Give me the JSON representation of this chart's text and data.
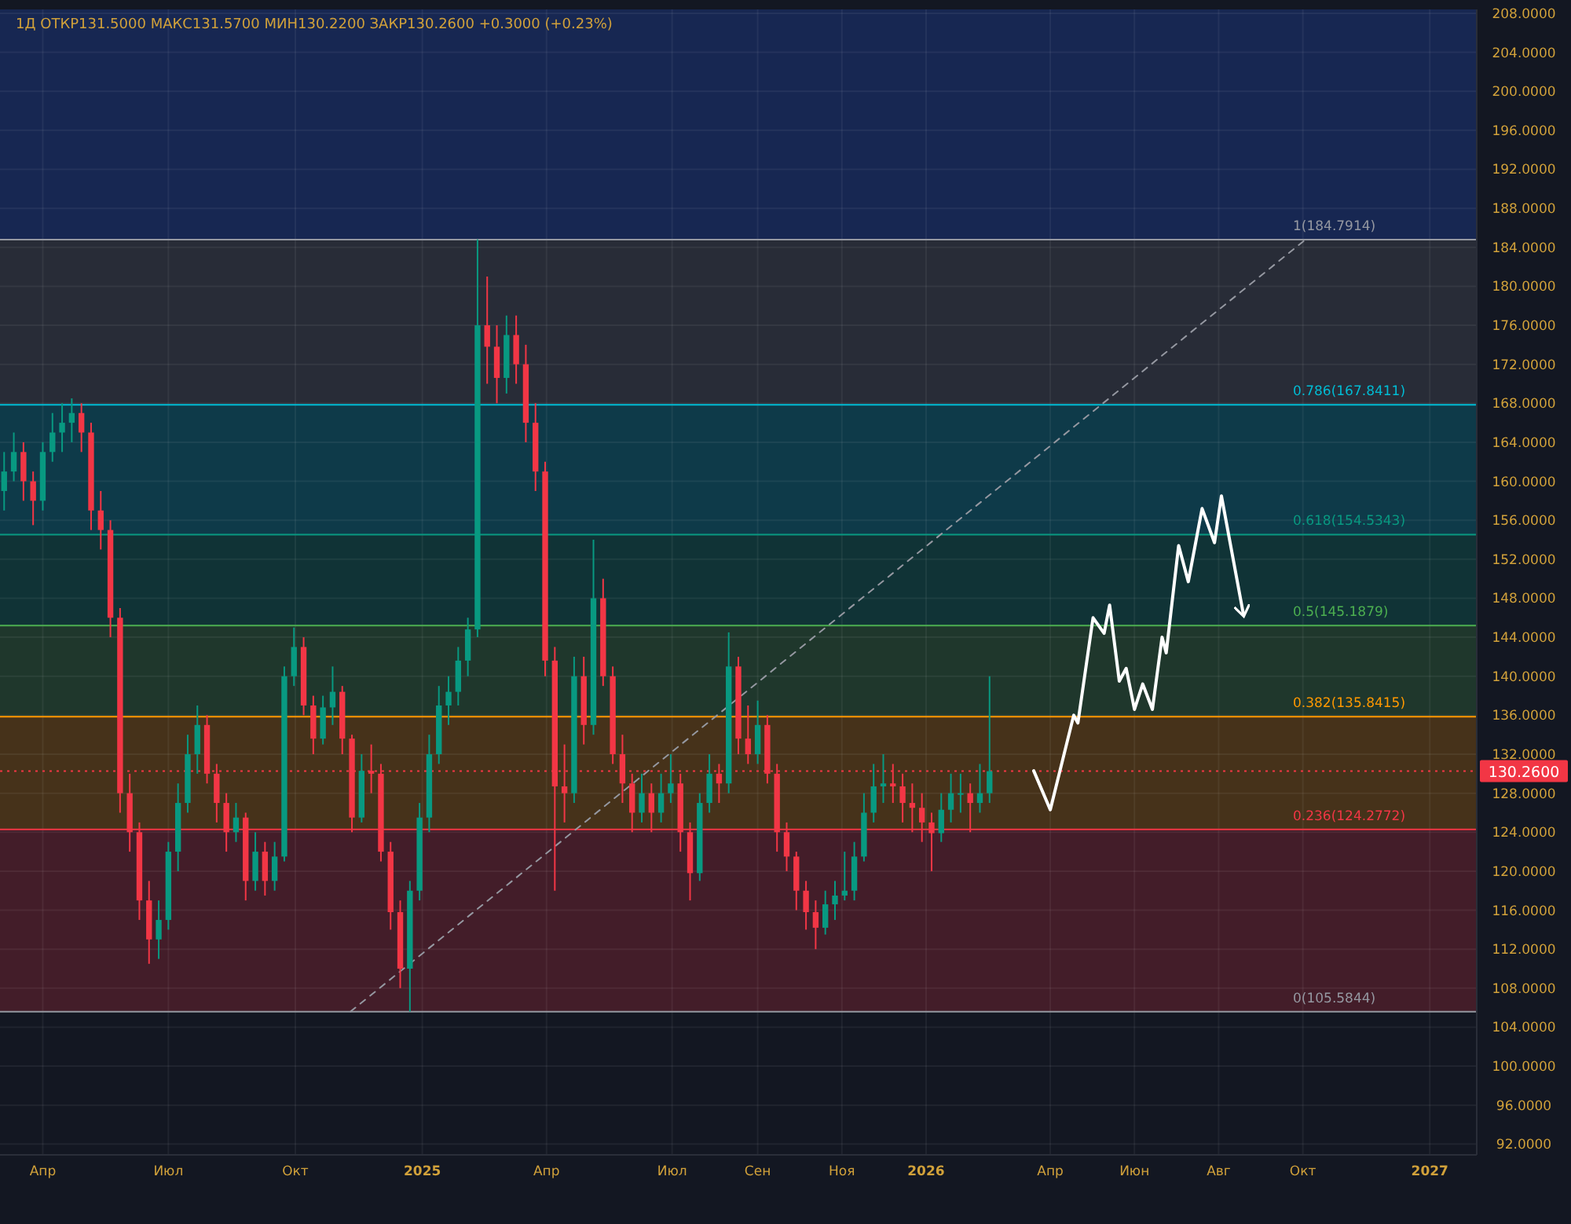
{
  "chart_data": {
    "type": "candlestick",
    "title": "1Д ОТКР131.5000 МАКС131.5700 МИН130.2200 ЗАКР130.2600 +0.3000 (+0.23%)",
    "x": [
      "2024-03-04",
      "2024-03-11",
      "2024-03-18",
      "2024-03-25",
      "2024-04-01",
      "2024-04-08",
      "2024-04-15",
      "2024-04-22",
      "2024-04-29",
      "2024-05-06",
      "2024-05-13",
      "2024-05-20",
      "2024-05-27",
      "2024-06-03",
      "2024-06-10",
      "2024-06-17",
      "2024-06-24",
      "2024-07-01",
      "2024-07-08",
      "2024-07-15",
      "2024-07-22",
      "2024-07-29",
      "2024-08-05",
      "2024-08-12",
      "2024-08-19",
      "2024-08-26",
      "2024-09-02",
      "2024-09-09",
      "2024-09-16",
      "2024-09-23",
      "2024-09-30",
      "2024-10-07",
      "2024-10-14",
      "2024-10-21",
      "2024-10-28",
      "2024-11-04",
      "2024-11-11",
      "2024-11-18",
      "2024-11-25",
      "2024-12-02",
      "2024-12-09",
      "2024-12-16",
      "2024-12-23",
      "2024-12-30",
      "2025-01-06",
      "2025-01-13",
      "2025-01-20",
      "2025-01-27",
      "2025-02-03",
      "2025-02-10",
      "2025-02-17",
      "2025-02-24",
      "2025-03-03",
      "2025-03-10",
      "2025-03-17",
      "2025-03-24",
      "2025-03-31",
      "2025-04-07",
      "2025-04-14",
      "2025-04-21",
      "2025-04-28",
      "2025-05-05",
      "2025-05-12",
      "2025-05-19",
      "2025-05-26",
      "2025-06-02",
      "2025-06-09",
      "2025-06-16",
      "2025-06-23",
      "2025-06-30",
      "2025-07-07",
      "2025-07-14",
      "2025-07-21",
      "2025-07-28",
      "2025-08-04",
      "2025-08-11",
      "2025-08-18",
      "2025-08-25",
      "2025-09-01",
      "2025-09-08",
      "2025-09-15",
      "2025-09-22",
      "2025-09-29",
      "2025-10-06",
      "2025-10-13",
      "2025-10-20",
      "2025-10-27",
      "2025-11-03",
      "2025-11-10",
      "2025-11-17",
      "2025-11-24",
      "2025-12-01",
      "2025-12-08",
      "2025-12-15",
      "2025-12-22",
      "2025-12-29",
      "2026-01-05",
      "2026-01-12",
      "2026-01-19",
      "2026-01-26",
      "2026-02-02",
      "2026-02-09",
      "2026-02-16"
    ],
    "ohlc": [
      [
        159,
        163,
        157,
        161
      ],
      [
        161,
        165,
        160,
        163
      ],
      [
        163,
        164,
        158,
        160
      ],
      [
        160,
        161,
        155.5,
        158
      ],
      [
        158,
        164,
        157,
        163
      ],
      [
        163,
        167,
        162,
        165
      ],
      [
        165,
        168,
        163,
        166
      ],
      [
        166,
        168.5,
        164,
        167
      ],
      [
        167,
        168,
        163,
        165
      ],
      [
        165,
        166,
        155,
        157
      ],
      [
        157,
        159,
        153,
        155
      ],
      [
        155,
        156,
        144,
        146
      ],
      [
        146,
        147,
        126,
        128
      ],
      [
        128,
        130,
        122,
        124
      ],
      [
        124,
        125,
        115,
        117
      ],
      [
        117,
        119,
        110.5,
        113
      ],
      [
        113,
        117,
        111,
        115
      ],
      [
        115,
        123,
        114,
        122
      ],
      [
        122,
        129,
        120,
        127
      ],
      [
        127,
        134,
        126,
        132
      ],
      [
        132,
        137,
        130,
        135
      ],
      [
        135,
        136,
        129,
        130
      ],
      [
        130,
        131,
        125,
        127
      ],
      [
        127,
        128,
        122,
        124
      ],
      [
        124,
        127,
        123,
        125.5
      ],
      [
        125.5,
        126,
        117,
        119
      ],
      [
        119,
        124,
        118,
        122
      ],
      [
        122,
        123,
        117.5,
        119
      ],
      [
        119,
        123,
        118,
        121.5
      ],
      [
        121.5,
        141,
        121,
        140
      ],
      [
        140,
        145,
        139,
        143
      ],
      [
        143,
        144,
        136,
        137
      ],
      [
        137,
        138,
        132,
        133.6
      ],
      [
        133.6,
        138,
        133,
        136.8
      ],
      [
        136.8,
        141,
        135,
        138.4
      ],
      [
        138.4,
        139,
        132,
        133.6
      ],
      [
        133.6,
        134,
        124,
        125.5
      ],
      [
        125.5,
        132,
        125,
        130.3
      ],
      [
        130.3,
        133,
        128,
        130
      ],
      [
        130,
        131,
        121,
        122
      ],
      [
        122,
        123,
        114,
        115.8
      ],
      [
        115.8,
        117,
        108,
        110
      ],
      [
        110,
        119,
        105.6,
        118
      ],
      [
        118,
        127,
        117,
        125.5
      ],
      [
        125.5,
        134,
        124,
        132
      ],
      [
        132,
        139,
        131,
        137
      ],
      [
        137,
        140,
        135,
        138.4
      ],
      [
        138.4,
        143,
        137,
        141.6
      ],
      [
        141.6,
        146,
        140,
        144.8
      ],
      [
        144.8,
        184.8,
        144,
        176
      ],
      [
        176,
        181,
        170,
        173.8
      ],
      [
        173.8,
        176,
        168,
        170.6
      ],
      [
        170.6,
        177,
        169,
        175
      ],
      [
        175,
        177,
        170,
        172
      ],
      [
        172,
        174,
        164,
        166
      ],
      [
        166,
        168,
        159,
        161
      ],
      [
        161,
        162,
        140,
        141.6
      ],
      [
        141.6,
        143,
        118,
        128.7
      ],
      [
        128.7,
        133,
        125,
        128
      ],
      [
        128,
        142,
        127,
        140
      ],
      [
        140,
        142,
        133,
        135
      ],
      [
        135,
        154,
        134,
        148
      ],
      [
        148,
        150,
        139,
        140
      ],
      [
        140,
        141,
        131,
        132
      ],
      [
        132,
        134,
        127,
        129
      ],
      [
        129,
        130,
        124,
        126
      ],
      [
        126,
        130,
        125,
        128
      ],
      [
        128,
        129,
        124,
        126
      ],
      [
        126,
        130,
        125,
        128
      ],
      [
        128,
        132,
        127,
        129
      ],
      [
        129,
        130,
        122,
        124
      ],
      [
        124,
        125,
        117,
        119.8
      ],
      [
        119.8,
        128,
        119,
        127
      ],
      [
        127,
        132,
        126,
        130
      ],
      [
        130,
        131,
        127,
        129
      ],
      [
        129,
        144.5,
        128,
        141
      ],
      [
        141,
        142,
        132,
        133.6
      ],
      [
        133.6,
        137,
        131,
        132
      ],
      [
        132,
        137.5,
        131,
        135
      ],
      [
        135,
        136,
        129,
        130
      ],
      [
        130,
        131,
        122,
        124
      ],
      [
        124,
        125,
        120,
        121.5
      ],
      [
        121.5,
        122,
        116,
        118
      ],
      [
        118,
        119,
        114,
        115.8
      ],
      [
        115.8,
        117,
        112,
        114.2
      ],
      [
        114.2,
        118,
        113.5,
        116.6
      ],
      [
        116.6,
        119,
        115,
        117.5
      ],
      [
        117.5,
        122,
        117,
        118
      ],
      [
        118,
        123,
        117,
        121.5
      ],
      [
        121.5,
        128,
        121,
        126
      ],
      [
        126,
        131,
        125,
        128.7
      ],
      [
        128.7,
        132,
        127,
        129
      ],
      [
        129,
        131,
        127,
        128.7
      ],
      [
        128.7,
        130,
        125,
        127
      ],
      [
        127,
        129,
        124,
        126.5
      ],
      [
        126.5,
        128,
        123,
        125
      ],
      [
        125,
        126,
        120,
        123.9
      ],
      [
        123.9,
        128,
        123,
        126.3
      ],
      [
        126.3,
        130,
        125,
        128
      ],
      [
        128,
        130,
        126,
        128
      ],
      [
        128,
        129,
        124,
        127
      ],
      [
        127,
        131,
        126,
        128
      ],
      [
        128,
        140,
        127,
        130.26
      ]
    ],
    "series": [
      {
        "type": "line",
        "color": "#ffffff",
        "line_style": "solid",
        "x": [
          "2026-03-20",
          "2026-04-01",
          "2026-04-18",
          "2026-04-21",
          "2026-05-02",
          "2026-05-10",
          "2026-05-14",
          "2026-05-21",
          "2026-05-26",
          "2026-06-01",
          "2026-06-07",
          "2026-06-14",
          "2026-06-21",
          "2026-06-24",
          "2026-07-03",
          "2026-07-10",
          "2026-07-20",
          "2026-07-29",
          "2026-08-03",
          "2026-08-19"
        ],
        "values": [
          130.3,
          126.3,
          136.0,
          135.2,
          146.0,
          144.4,
          147.3,
          139.5,
          140.8,
          136.6,
          139.2,
          136.6,
          144.0,
          142.4,
          153.4,
          149.7,
          157.2,
          153.7,
          158.5,
          146.3
        ]
      },
      {
        "type": "line",
        "color": "#9598a1",
        "line_style": "dashed",
        "x": [
          "2024-11-10",
          "2026-10-03"
        ],
        "values": [
          105.6,
          184.8
        ]
      }
    ],
    "bands": [
      {
        "axis": "y",
        "from": 184.7914,
        "to": 208.4,
        "color": "#2962ff"
      },
      {
        "axis": "y",
        "from": 167.8411,
        "to": 184.7914,
        "color": "#787b86"
      },
      {
        "axis": "y",
        "from": 154.5343,
        "to": 167.8411,
        "color": "#00bcd4"
      },
      {
        "axis": "y",
        "from": 145.1879,
        "to": 154.5343,
        "color": "#089981"
      },
      {
        "axis": "y",
        "from": 135.8415,
        "to": 145.1879,
        "color": "#4caf50"
      },
      {
        "axis": "y",
        "from": 124.2772,
        "to": 135.8415,
        "color": "#ff9800"
      },
      {
        "axis": "y",
        "from": 105.5844,
        "to": 124.2772,
        "color": "#f23645"
      }
    ],
    "ref_lines": [
      {
        "axis": "y",
        "value": 184.7914,
        "label": "1(184.7914)",
        "color": "#9598a1",
        "line_style": "solid"
      },
      {
        "axis": "y",
        "value": 167.8411,
        "label": "0.786(167.8411)",
        "color": "#00bcd4",
        "line_style": "solid"
      },
      {
        "axis": "y",
        "value": 154.5343,
        "label": "0.618(154.5343)",
        "color": "#089981",
        "line_style": "solid"
      },
      {
        "axis": "y",
        "value": 145.1879,
        "label": "0.5(145.1879)",
        "color": "#4caf50",
        "line_style": "solid"
      },
      {
        "axis": "y",
        "value": 135.8415,
        "label": "0.382(135.8415)",
        "color": "#ff9800",
        "line_style": "solid"
      },
      {
        "axis": "y",
        "value": 124.2772,
        "label": "0.236(124.2772)",
        "color": "#f23645",
        "line_style": "solid"
      },
      {
        "axis": "y",
        "value": 105.5844,
        "label": "0(105.5844)",
        "color": "#9598a1",
        "line_style": "solid"
      },
      {
        "axis": "y",
        "value": 130.26,
        "label": "130.2600",
        "color": "#f23645",
        "line_style": "dotted"
      }
    ],
    "xlim": [
      "2024-03-01",
      "2027-02-04"
    ],
    "xticks": [
      {
        "value": "2024-04-01",
        "label": "Апр"
      },
      {
        "value": "2024-07-01",
        "label": "Июл"
      },
      {
        "value": "2024-10-01",
        "label": "Окт"
      },
      {
        "value": "2025-01-01",
        "label": "2025"
      },
      {
        "value": "2025-04-01",
        "label": "Апр"
      },
      {
        "value": "2025-07-01",
        "label": "Июл"
      },
      {
        "value": "2025-09-01",
        "label": "Сен"
      },
      {
        "value": "2025-11-01",
        "label": "Ноя"
      },
      {
        "value": "2026-01-01",
        "label": "2026"
      },
      {
        "value": "2026-04-01",
        "label": "Апр"
      },
      {
        "value": "2026-06-01",
        "label": "Июн"
      },
      {
        "value": "2026-08-01",
        "label": "Авг"
      },
      {
        "value": "2026-10-01",
        "label": "Окт"
      },
      {
        "value": "2027-01-01",
        "label": "2027"
      }
    ],
    "ylim": [
      90.9,
      208.4
    ],
    "yticks": [
      {
        "value": 92,
        "label": "92.0000"
      },
      {
        "value": 96,
        "label": "96.0000"
      },
      {
        "value": 100,
        "label": "100.0000"
      },
      {
        "value": 104,
        "label": "104.0000"
      },
      {
        "value": 108,
        "label": "108.0000"
      },
      {
        "value": 112,
        "label": "112.0000"
      },
      {
        "value": 116,
        "label": "116.0000"
      },
      {
        "value": 120,
        "label": "120.0000"
      },
      {
        "value": 124,
        "label": "124.0000"
      },
      {
        "value": 128,
        "label": "128.0000"
      },
      {
        "value": 132,
        "label": "132.0000"
      },
      {
        "value": 136,
        "label": "136.0000"
      },
      {
        "value": 140,
        "label": "140.0000"
      },
      {
        "value": 144,
        "label": "144.0000"
      },
      {
        "value": 148,
        "label": "148.0000"
      },
      {
        "value": 152,
        "label": "152.0000"
      },
      {
        "value": 156,
        "label": "156.0000"
      },
      {
        "value": 160,
        "label": "160.0000"
      },
      {
        "value": 164,
        "label": "164.0000"
      },
      {
        "value": 168,
        "label": "168.0000"
      },
      {
        "value": 172,
        "label": "172.0000"
      },
      {
        "value": 176,
        "label": "176.0000"
      },
      {
        "value": 180,
        "label": "180.0000"
      },
      {
        "value": 184,
        "label": "184.0000"
      },
      {
        "value": 188,
        "label": "188.0000"
      },
      {
        "value": 192,
        "label": "192.0000"
      },
      {
        "value": 196,
        "label": "196.0000"
      },
      {
        "value": 200,
        "label": "200.0000"
      },
      {
        "value": 204,
        "label": "204.0000"
      },
      {
        "value": 208,
        "label": "208.0000"
      }
    ],
    "grid": true
  }
}
